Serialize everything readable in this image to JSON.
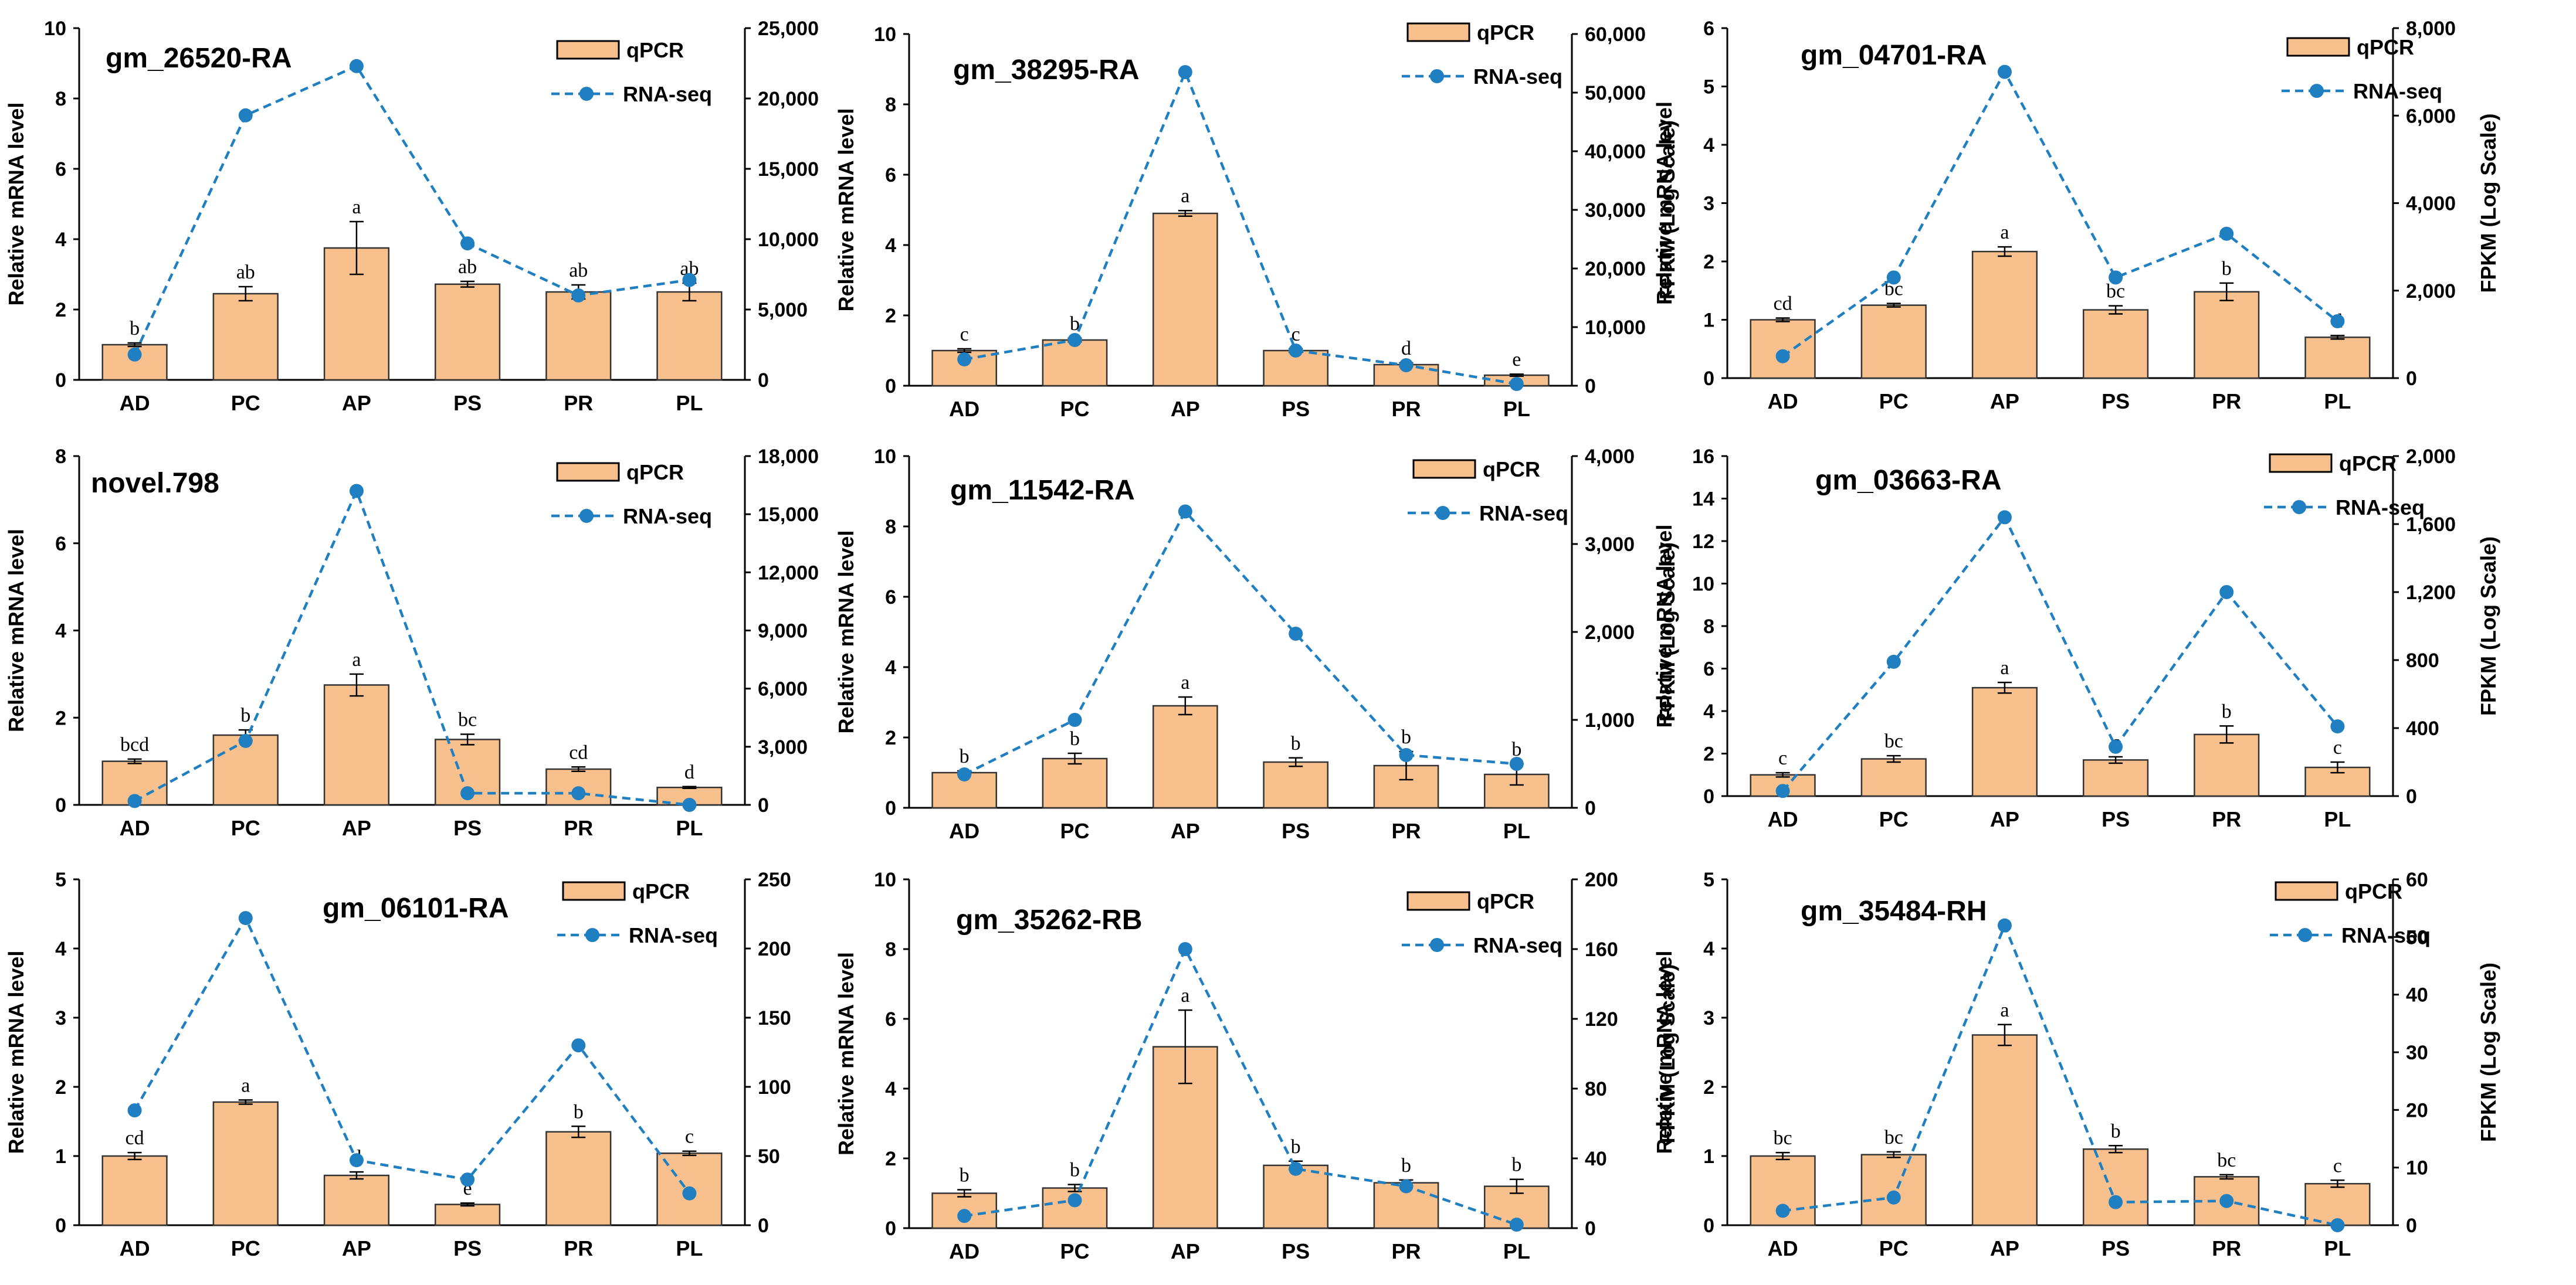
{
  "colors": {
    "bar_fill": "#f8c08d",
    "bar_stroke": "#333333",
    "line": "#1f7fc1"
  },
  "legend": {
    "bar": "qPCR",
    "line": "RNA-seq"
  },
  "chart_data": [
    {
      "type": "bar",
      "title": "gm_26520-RA",
      "categories": [
        "AD",
        "PC",
        "AP",
        "PS",
        "PR",
        "PL"
      ],
      "ylabel": "Relative mRNA level",
      "ylabel_right": "",
      "ylim": [
        0,
        10
      ],
      "yticks": [
        0,
        2,
        4,
        6,
        8,
        10
      ],
      "y2lim": [
        0,
        25000
      ],
      "y2ticks": [
        0,
        5000,
        10000,
        15000,
        20000,
        25000
      ],
      "y2tick_labels": [
        "0",
        "5,000",
        "10,000",
        "15,000",
        "20,000",
        "25,000"
      ],
      "series": [
        {
          "name": "qPCR",
          "values": [
            1.0,
            2.45,
            3.75,
            2.72,
            2.5,
            2.5
          ],
          "errors": [
            0.05,
            0.2,
            0.75,
            0.08,
            0.2,
            0.25
          ],
          "letters": [
            "b",
            "ab",
            "a",
            "ab",
            "ab",
            "ab"
          ]
        },
        {
          "name": "RNA-seq",
          "values": [
            1800,
            18800,
            22300,
            9700,
            6000,
            7100
          ]
        }
      ]
    },
    {
      "type": "bar",
      "title": "gm_38295-RA",
      "categories": [
        "AD",
        "PC",
        "AP",
        "PS",
        "PR",
        "PL"
      ],
      "ylabel": "Relative mRNA level",
      "ylabel_right": "FPKM (Log Scale)",
      "ylim": [
        0,
        10
      ],
      "yticks": [
        0,
        2,
        4,
        6,
        8,
        10
      ],
      "y2lim": [
        0,
        60000
      ],
      "y2ticks": [
        0,
        10000,
        20000,
        30000,
        40000,
        50000,
        60000
      ],
      "y2tick_labels": [
        "0",
        "10,000",
        "20,000",
        "30,000",
        "40,000",
        "50,000",
        "60,000"
      ],
      "series": [
        {
          "name": "qPCR",
          "values": [
            1.0,
            1.3,
            4.9,
            1.0,
            0.6,
            0.3
          ],
          "errors": [
            0.05,
            0.05,
            0.08,
            0.05,
            0.05,
            0.03
          ],
          "letters": [
            "c",
            "b",
            "a",
            "c",
            "d",
            "e"
          ]
        },
        {
          "name": "RNA-seq",
          "values": [
            4500,
            7800,
            53500,
            6000,
            3500,
            300
          ]
        }
      ]
    },
    {
      "type": "bar",
      "title": "gm_04701-RA",
      "categories": [
        "AD",
        "PC",
        "AP",
        "PS",
        "PR",
        "PL"
      ],
      "ylabel": "Relative mRNA level",
      "ylabel_right": "FPKM (Log Scale)",
      "ylim": [
        0,
        6
      ],
      "yticks": [
        0,
        1,
        2,
        3,
        4,
        5,
        6
      ],
      "y2lim": [
        0,
        8000
      ],
      "y2ticks": [
        0,
        2000,
        4000,
        6000,
        8000
      ],
      "y2tick_labels": [
        "0",
        "2,000",
        "4,000",
        "6,000",
        "8,000"
      ],
      "series": [
        {
          "name": "qPCR",
          "values": [
            1.0,
            1.25,
            2.17,
            1.17,
            1.48,
            0.7
          ],
          "errors": [
            0.03,
            0.03,
            0.08,
            0.07,
            0.15,
            0.03
          ],
          "letters": [
            "cd",
            "bc",
            "a",
            "bc",
            "b",
            "d"
          ]
        },
        {
          "name": "RNA-seq",
          "values": [
            500,
            2300,
            7000,
            2300,
            3300,
            1300
          ]
        }
      ]
    },
    {
      "type": "bar",
      "title": "novel.798",
      "categories": [
        "AD",
        "PC",
        "AP",
        "PS",
        "PR",
        "PL"
      ],
      "ylabel": "Relative mRNA level",
      "ylabel_right": "",
      "ylim": [
        0,
        8
      ],
      "yticks": [
        0,
        2,
        4,
        6,
        8
      ],
      "y2lim": [
        0,
        18000
      ],
      "y2ticks": [
        0,
        3000,
        6000,
        9000,
        12000,
        15000,
        18000
      ],
      "y2tick_labels": [
        "0",
        "3,000",
        "6,000",
        "9,000",
        "12,000",
        "15,000",
        "18,000"
      ],
      "series": [
        {
          "name": "qPCR",
          "values": [
            1.0,
            1.6,
            2.75,
            1.5,
            0.82,
            0.4
          ],
          "errors": [
            0.05,
            0.12,
            0.25,
            0.12,
            0.05,
            0.02
          ],
          "letters": [
            "bcd",
            "b",
            "a",
            "bc",
            "cd",
            "d"
          ]
        },
        {
          "name": "RNA-seq",
          "values": [
            200,
            3300,
            16200,
            600,
            600,
            0
          ]
        }
      ]
    },
    {
      "type": "bar",
      "title": "gm_11542-RA",
      "categories": [
        "AD",
        "PC",
        "AP",
        "PS",
        "PR",
        "PL"
      ],
      "ylabel": "Relative mRNA level",
      "ylabel_right": "FPKM (Log Scale)",
      "ylim": [
        0,
        10
      ],
      "yticks": [
        0,
        2,
        4,
        6,
        8,
        10
      ],
      "y2lim": [
        0,
        4000
      ],
      "y2ticks": [
        0,
        1000,
        2000,
        3000,
        4000
      ],
      "y2tick_labels": [
        "0",
        "1,000",
        "2,000",
        "3,000",
        "4,000"
      ],
      "series": [
        {
          "name": "qPCR",
          "values": [
            1.0,
            1.4,
            2.9,
            1.3,
            1.2,
            0.95
          ],
          "errors": [
            0.05,
            0.15,
            0.25,
            0.12,
            0.4,
            0.3
          ],
          "letters": [
            "b",
            "b",
            "a",
            "b",
            "b",
            "b"
          ]
        },
        {
          "name": "RNA-seq",
          "values": [
            380,
            1000,
            3370,
            1980,
            600,
            500
          ]
        }
      ]
    },
    {
      "type": "bar",
      "title": "gm_03663-RA",
      "categories": [
        "AD",
        "PC",
        "AP",
        "PS",
        "PR",
        "PL"
      ],
      "ylabel": "Relative mRNA level",
      "ylabel_right": "FPKM (Log Scale)",
      "ylim": [
        0,
        16
      ],
      "yticks": [
        0,
        2,
        4,
        6,
        8,
        10,
        12,
        14,
        16
      ],
      "y2lim": [
        0,
        2000
      ],
      "y2ticks": [
        0,
        400,
        800,
        1200,
        1600,
        2000
      ],
      "y2tick_labels": [
        "0",
        "400",
        "800",
        "1,200",
        "1,600",
        "2,000"
      ],
      "series": [
        {
          "name": "qPCR",
          "values": [
            1.0,
            1.75,
            5.1,
            1.7,
            2.9,
            1.35
          ],
          "errors": [
            0.1,
            0.15,
            0.25,
            0.15,
            0.4,
            0.25
          ],
          "letters": [
            "c",
            "bc",
            "a",
            "c",
            "b",
            "c"
          ]
        },
        {
          "name": "RNA-seq",
          "values": [
            30,
            790,
            1640,
            290,
            1200,
            410
          ]
        }
      ]
    },
    {
      "type": "bar",
      "title": "gm_06101-RA",
      "categories": [
        "AD",
        "PC",
        "AP",
        "PS",
        "PR",
        "PL"
      ],
      "ylabel": "Relative mRNA level",
      "ylabel_right": "",
      "ylim": [
        0,
        5
      ],
      "yticks": [
        0,
        1,
        2,
        3,
        4,
        5
      ],
      "y2lim": [
        0,
        250
      ],
      "y2ticks": [
        0,
        50,
        100,
        150,
        200,
        250
      ],
      "y2tick_labels": [
        "0",
        "50",
        "100",
        "150",
        "200",
        "250"
      ],
      "series": [
        {
          "name": "qPCR",
          "values": [
            1.0,
            1.78,
            0.72,
            0.3,
            1.35,
            1.04
          ],
          "errors": [
            0.05,
            0.03,
            0.05,
            0.02,
            0.08,
            0.03
          ],
          "letters": [
            "cd",
            "a",
            "d",
            "e",
            "b",
            "c"
          ]
        },
        {
          "name": "RNA-seq",
          "values": [
            83,
            222,
            47,
            33,
            130,
            23
          ]
        }
      ]
    },
    {
      "type": "bar",
      "title": "gm_35262-RB",
      "categories": [
        "AD",
        "PC",
        "AP",
        "PS",
        "PR",
        "PL"
      ],
      "ylabel": "Relative mRNA level",
      "ylabel_right": "FPKM (Log Scale)",
      "ylim": [
        0,
        10
      ],
      "yticks": [
        0,
        2,
        4,
        6,
        8,
        10
      ],
      "y2lim": [
        0,
        200
      ],
      "y2ticks": [
        0,
        40,
        80,
        120,
        160,
        200
      ],
      "y2tick_labels": [
        "0",
        "40",
        "80",
        "120",
        "160",
        "200"
      ],
      "series": [
        {
          "name": "qPCR",
          "values": [
            1.0,
            1.15,
            5.2,
            1.8,
            1.3,
            1.2
          ],
          "errors": [
            0.1,
            0.1,
            1.05,
            0.12,
            0.08,
            0.2
          ],
          "letters": [
            "b",
            "b",
            "a",
            "b",
            "b",
            "b"
          ]
        },
        {
          "name": "RNA-seq",
          "values": [
            7,
            16,
            160,
            34,
            24,
            2
          ]
        }
      ]
    },
    {
      "type": "bar",
      "title": "gm_35484-RH",
      "categories": [
        "AD",
        "PC",
        "AP",
        "PS",
        "PR",
        "PL"
      ],
      "ylabel": "Relative mRNA level",
      "ylabel_right": "FPKM (Log Scale)",
      "ylim": [
        0,
        5
      ],
      "yticks": [
        0,
        1,
        2,
        3,
        4,
        5
      ],
      "y2lim": [
        0,
        60
      ],
      "y2ticks": [
        0,
        10,
        20,
        30,
        40,
        50,
        60
      ],
      "y2tick_labels": [
        "0",
        "10",
        "20",
        "30",
        "40",
        "50",
        "60"
      ],
      "series": [
        {
          "name": "qPCR",
          "values": [
            1.0,
            1.02,
            2.75,
            1.1,
            0.7,
            0.6
          ],
          "errors": [
            0.05,
            0.04,
            0.15,
            0.05,
            0.03,
            0.05
          ],
          "letters": [
            "bc",
            "bc",
            "a",
            "b",
            "bc",
            "c"
          ]
        },
        {
          "name": "RNA-seq",
          "values": [
            2.5,
            4.8,
            52,
            4,
            4.2,
            0
          ]
        }
      ]
    }
  ]
}
